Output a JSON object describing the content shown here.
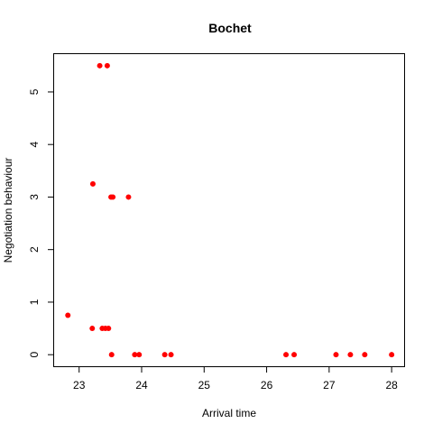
{
  "chart_data": {
    "type": "scatter",
    "title": "Bochet",
    "xlabel": "Arrival time",
    "ylabel": "Negotiation behaviour",
    "xlim": [
      22.6,
      28.2
    ],
    "ylim": [
      -0.22,
      5.72
    ],
    "x_ticks": [
      23,
      24,
      25,
      26,
      27,
      28
    ],
    "y_ticks": [
      0,
      1,
      2,
      3,
      4,
      5
    ],
    "point_color": "#ff0000",
    "grid": false,
    "points": [
      {
        "x": 22.82,
        "y": 0.75
      },
      {
        "x": 23.21,
        "y": 0.5
      },
      {
        "x": 23.22,
        "y": 3.25
      },
      {
        "x": 23.33,
        "y": 5.5
      },
      {
        "x": 23.37,
        "y": 0.5
      },
      {
        "x": 23.42,
        "y": 0.5
      },
      {
        "x": 23.47,
        "y": 0.5
      },
      {
        "x": 23.45,
        "y": 5.5
      },
      {
        "x": 23.51,
        "y": 3.0
      },
      {
        "x": 23.54,
        "y": 3.0
      },
      {
        "x": 23.52,
        "y": 0.0
      },
      {
        "x": 23.79,
        "y": 3.0
      },
      {
        "x": 23.89,
        "y": 0.0
      },
      {
        "x": 23.96,
        "y": 0.0
      },
      {
        "x": 24.37,
        "y": 0.0
      },
      {
        "x": 24.47,
        "y": 0.0
      },
      {
        "x": 26.31,
        "y": 0.0
      },
      {
        "x": 26.44,
        "y": 0.0
      },
      {
        "x": 27.11,
        "y": 0.0
      },
      {
        "x": 27.34,
        "y": 0.0
      },
      {
        "x": 27.57,
        "y": 0.0
      },
      {
        "x": 28.0,
        "y": 0.0
      }
    ]
  }
}
